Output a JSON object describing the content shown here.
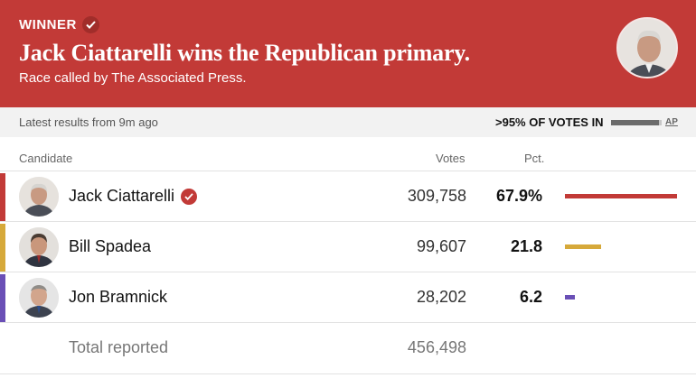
{
  "banner": {
    "winner_label": "WINNER",
    "headline": "Jack Ciattarelli wins the Republican primary.",
    "subline": "Race called by The Associated Press.",
    "background_color": "#c23a37"
  },
  "status": {
    "updated": "Latest results from 9m ago",
    "votes_in": ">95% OF VOTES IN",
    "reporting_fraction": 0.95,
    "source": "AP"
  },
  "table": {
    "headers": {
      "candidate": "Candidate",
      "votes": "Votes",
      "pct": "Pct."
    },
    "rows": [
      {
        "name": "Jack Ciattarelli",
        "votes": "309,758",
        "pct": "67.9%",
        "pct_value": 67.9,
        "color": "#c23a37",
        "winner": true
      },
      {
        "name": "Bill Spadea",
        "votes": "99,607",
        "pct": "21.8",
        "pct_value": 21.8,
        "color": "#d6a93a",
        "winner": false
      },
      {
        "name": "Jon Bramnick",
        "votes": "28,202",
        "pct": "6.2",
        "pct_value": 6.2,
        "color": "#6a4fb6",
        "winner": false
      }
    ],
    "total_label": "Total reported",
    "total_votes": "456,498"
  }
}
